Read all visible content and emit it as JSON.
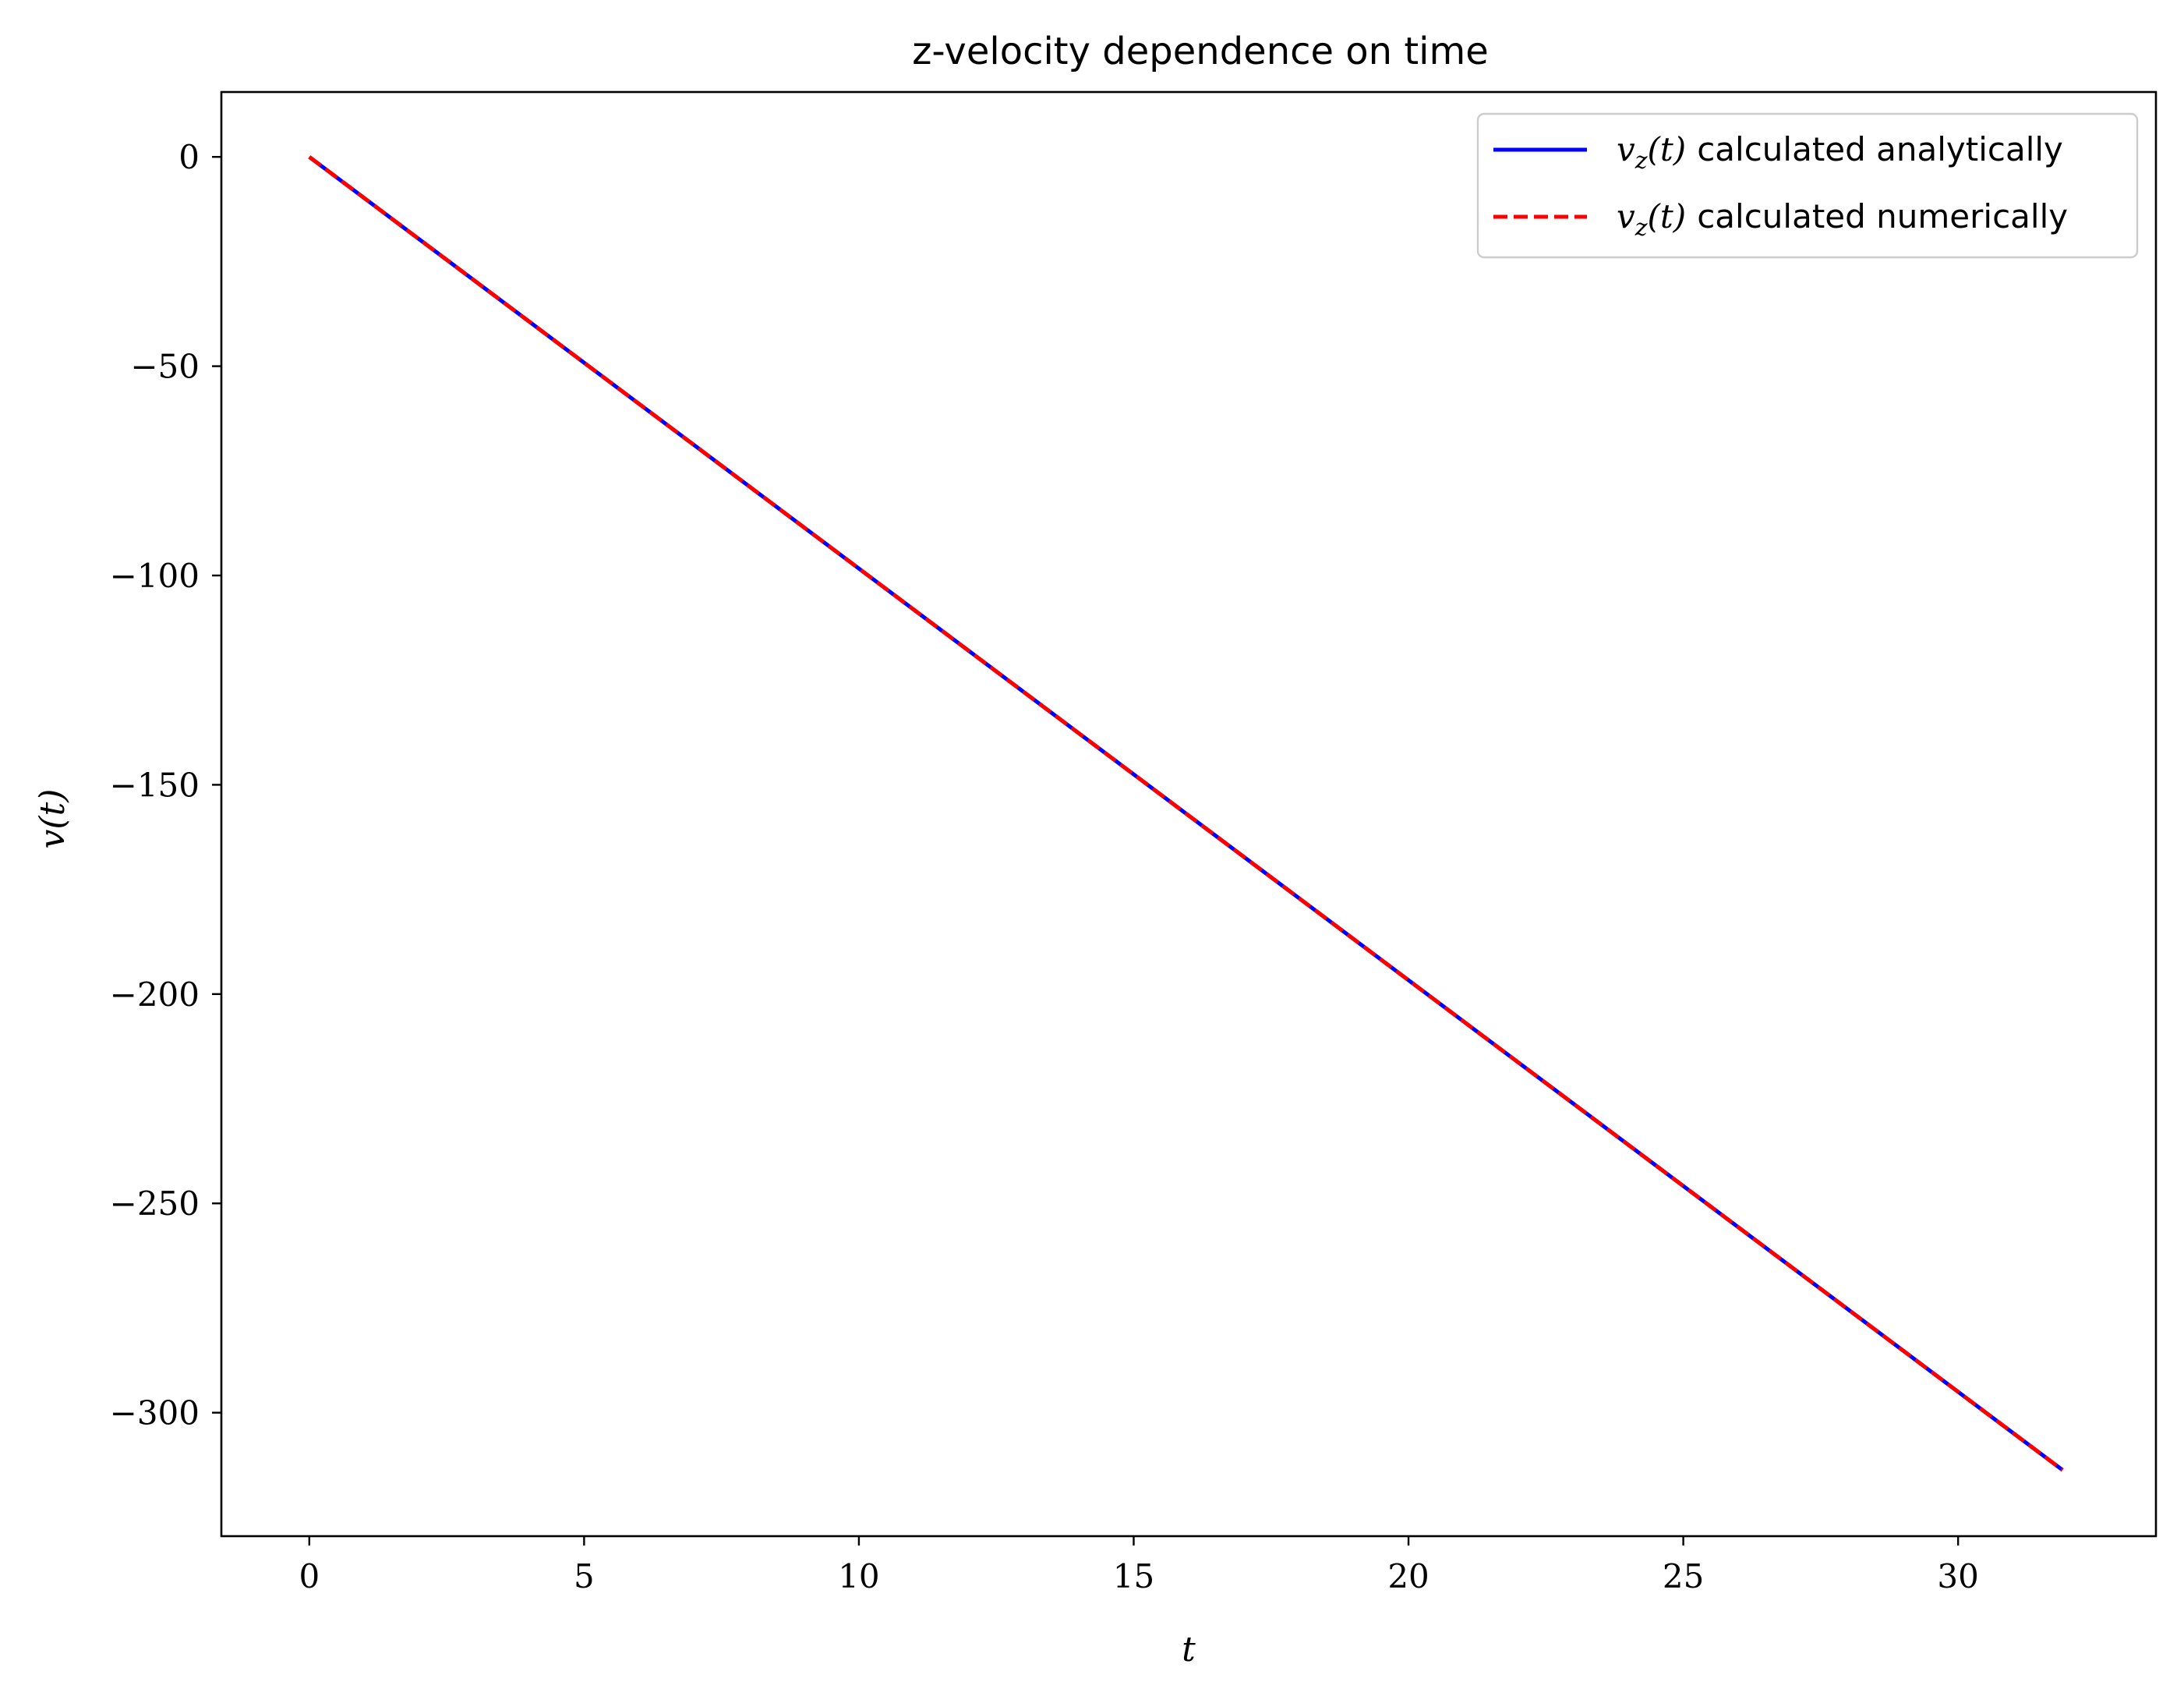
{
  "chart_data": {
    "type": "line",
    "title": "z-velocity dependence on time",
    "xlabel": "t",
    "ylabel": "v(t)",
    "xlim": [
      -1.6,
      33.6
    ],
    "ylim": [
      -329.5,
      15.5
    ],
    "xticks": [
      0,
      5,
      10,
      15,
      20,
      25,
      30
    ],
    "yticks": [
      0,
      -50,
      -100,
      -150,
      -200,
      -250,
      -300
    ],
    "xtick_labels": [
      "0",
      "5",
      "10",
      "15",
      "20",
      "25",
      "30"
    ],
    "ytick_labels": [
      "0",
      "−50",
      "−100",
      "−150",
      "−200",
      "−250",
      "−300"
    ],
    "grid": false,
    "legend_position": "top-right",
    "series": [
      {
        "name": "v_z(t) calculated analytically",
        "legend_math_var": "v",
        "legend_math_sub": "z",
        "legend_math_arg": "(t)",
        "legend_suffix": "calculated analytically",
        "color": "#0000ff",
        "style": "solid",
        "x": [
          0,
          31.9
        ],
        "y": [
          0,
          -313.7
        ]
      },
      {
        "name": "v_z(t) calculated numerically",
        "legend_math_var": "v",
        "legend_math_sub": "z",
        "legend_math_arg": "(t)",
        "legend_suffix": "calculated numerically",
        "color": "#ff0000",
        "style": "dashed",
        "x": [
          0,
          31.9
        ],
        "y": [
          0,
          -313.7
        ]
      }
    ]
  }
}
